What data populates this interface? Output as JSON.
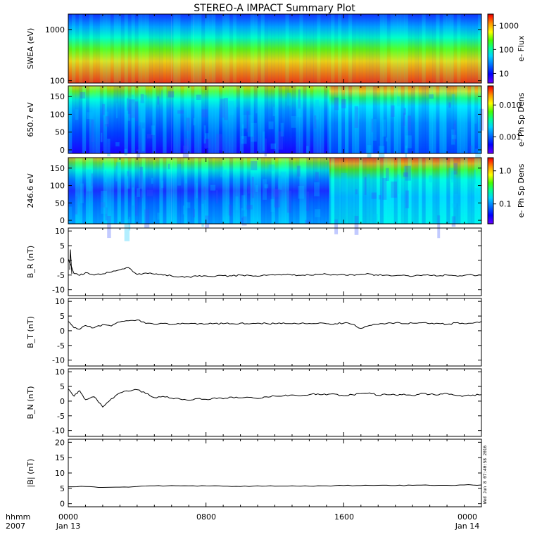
{
  "title": "STEREO-A IMPACT Summary Plot",
  "stamp": "Wed Jun  8 07:40:58 2016",
  "time_axis": {
    "hhmm_label": "hhmm",
    "year_label": "2007",
    "ticks": [
      {
        "time": "0000",
        "date": "Jan 13"
      },
      {
        "time": "0800",
        "date": ""
      },
      {
        "time": "1600",
        "date": ""
      },
      {
        "time": "0000",
        "date": "Jan 14"
      }
    ]
  },
  "colors": {
    "background": "#ffffff",
    "axis": "#000000",
    "trace": "#000000",
    "colormap": [
      "#6a00ff",
      "#0000ff",
      "#0077ff",
      "#00d4ff",
      "#00ff9a",
      "#46ff00",
      "#ffff00",
      "#ff9800",
      "#ff2000",
      "#d40000"
    ]
  },
  "chart_data": [
    {
      "type": "heatmap",
      "name": "swea_spectrogram",
      "ylabel": "SWEA (eV)",
      "y_scale": "log",
      "ylim": [
        90,
        2000
      ],
      "yticks": [
        {
          "value": 100,
          "label": "100"
        },
        {
          "value": 1000,
          "label": "1000"
        }
      ],
      "colorbar": {
        "label": "e- Flux",
        "scale": "log",
        "range": [
          4,
          3000
        ],
        "ticks": [
          {
            "value": 10,
            "label": "10"
          },
          {
            "value": 100,
            "label": "100"
          },
          {
            "value": 1000,
            "label": "1000"
          }
        ]
      },
      "regions": [
        {
          "start": "0000",
          "end": "0600",
          "low_energy_level": 0.77
        },
        {
          "start": "0600",
          "end": "0715",
          "low_energy_level": 0.86
        },
        {
          "start": "0715",
          "end": "1510",
          "low_energy_level": 0.72
        },
        {
          "start": "1510",
          "end": "2400",
          "low_energy_level": 0.94
        }
      ]
    },
    {
      "type": "heatmap",
      "name": "pad_650",
      "ylabel": "650.7 eV",
      "ylim": [
        -10,
        180
      ],
      "yticks": [
        {
          "value": 0,
          "label": "0"
        },
        {
          "value": 50,
          "label": "50"
        },
        {
          "value": 100,
          "label": "100"
        },
        {
          "value": 150,
          "label": "150"
        }
      ],
      "colorbar": {
        "label": "e- Ph Sp Dens",
        "scale": "log",
        "range": [
          0.0003,
          0.04
        ],
        "ticks": [
          {
            "value": 0.001,
            "label": "0.001"
          },
          {
            "value": 0.01,
            "label": "0.010"
          }
        ]
      },
      "regions": [
        {
          "start": "0000",
          "end": "0600",
          "level": 0.31
        },
        {
          "start": "0600",
          "end": "1510",
          "level": 0.22
        },
        {
          "start": "1510",
          "end": "2400",
          "level": 0.45
        }
      ]
    },
    {
      "type": "heatmap",
      "name": "pad_246",
      "ylabel": "246.6 eV",
      "ylim": [
        -10,
        180
      ],
      "yticks": [
        {
          "value": 0,
          "label": "0"
        },
        {
          "value": 50,
          "label": "50"
        },
        {
          "value": 100,
          "label": "100"
        },
        {
          "value": 150,
          "label": "150"
        }
      ],
      "colorbar": {
        "label": "e- Ph Sp Dens",
        "scale": "log",
        "range": [
          0.025,
          2.5
        ],
        "ticks": [
          {
            "value": 0.1,
            "label": "0.1"
          },
          {
            "value": 1,
            "label": "1.0"
          }
        ]
      },
      "regions": [
        {
          "start": "0000",
          "end": "0600",
          "level": 0.3
        },
        {
          "start": "0600",
          "end": "1510",
          "level": 0.16
        },
        {
          "start": "1510",
          "end": "2400",
          "level": 0.42
        }
      ]
    },
    {
      "type": "line",
      "name": "br",
      "ylabel": "B_R (nT)",
      "ylim": [
        -12,
        11
      ],
      "yticks": [
        {
          "value": -10,
          "label": "-10"
        },
        {
          "value": -5,
          "label": "-5"
        },
        {
          "value": 0,
          "label": "0"
        },
        {
          "value": 5,
          "label": "5"
        },
        {
          "value": 10,
          "label": "10"
        }
      ],
      "x": [
        "0000",
        "0020",
        "0040",
        "0100",
        "0130",
        "0200",
        "0230",
        "0300",
        "0330",
        "0400",
        "0430",
        "0500",
        "0530",
        "0600",
        "0630",
        "0700",
        "0730",
        "0800",
        "0830",
        "0900",
        "0930",
        "1000",
        "1030",
        "1100",
        "1130",
        "1200",
        "1230",
        "1300",
        "1330",
        "1400",
        "1430",
        "1500",
        "1530",
        "1600",
        "1630",
        "1700",
        "1730",
        "1800",
        "1830",
        "1900",
        "1930",
        "2000",
        "2030",
        "2100",
        "2130",
        "2200",
        "2230",
        "2300",
        "2330",
        "2400"
      ],
      "y": [
        0.5,
        -4.5,
        -5.1,
        -4.2,
        -5.0,
        -4.6,
        -4.0,
        -3.2,
        -2.5,
        -4.8,
        -4.3,
        -4.7,
        -5.0,
        -5.3,
        -5.6,
        -5.6,
        -5.4,
        -5.3,
        -5.5,
        -5.2,
        -5.3,
        -5.0,
        -5.1,
        -5.4,
        -5.1,
        -5.0,
        -4.8,
        -5.0,
        -5.1,
        -5.0,
        -4.8,
        -4.7,
        -4.9,
        -4.8,
        -4.9,
        -4.7,
        -4.6,
        -5.1,
        -5.0,
        -5.2,
        -5.0,
        -5.4,
        -5.2,
        -5.1,
        -5.3,
        -5.0,
        -5.2,
        -5.1,
        -5.0,
        -5.1
      ]
    },
    {
      "type": "line",
      "name": "bt",
      "ylabel": "B_T (nT)",
      "ylim": [
        -12,
        11
      ],
      "yticks": [
        {
          "value": -10,
          "label": "-10"
        },
        {
          "value": -5,
          "label": "-5"
        },
        {
          "value": 0,
          "label": "0"
        },
        {
          "value": 5,
          "label": "5"
        },
        {
          "value": 10,
          "label": "10"
        }
      ],
      "x": [
        "0000",
        "0020",
        "0040",
        "0100",
        "0130",
        "0200",
        "0230",
        "0300",
        "0330",
        "0400",
        "0430",
        "0500",
        "0530",
        "0600",
        "0630",
        "0700",
        "0730",
        "0800",
        "0830",
        "0900",
        "0930",
        "1000",
        "1030",
        "1100",
        "1130",
        "1200",
        "1230",
        "1300",
        "1330",
        "1400",
        "1430",
        "1500",
        "1530",
        "1600",
        "1630",
        "1700",
        "1730",
        "1800",
        "1830",
        "1900",
        "1930",
        "2000",
        "2030",
        "2100",
        "2130",
        "2200",
        "2230",
        "2300",
        "2330",
        "2400"
      ],
      "y": [
        3.2,
        1.0,
        0.5,
        1.8,
        1.0,
        2.1,
        1.6,
        3.0,
        3.4,
        3.7,
        2.5,
        2.2,
        2.5,
        2.1,
        2.3,
        2.4,
        2.2,
        2.3,
        2.5,
        2.4,
        2.4,
        2.6,
        2.3,
        2.6,
        2.5,
        2.4,
        2.7,
        2.4,
        2.5,
        2.5,
        2.5,
        2.4,
        2.4,
        2.6,
        2.2,
        0.8,
        1.8,
        2.2,
        2.5,
        2.7,
        2.4,
        2.6,
        2.7,
        2.4,
        2.5,
        2.2,
        2.7,
        2.4,
        2.6,
        3.2
      ]
    },
    {
      "type": "line",
      "name": "bn",
      "ylabel": "B_N (nT)",
      "ylim": [
        -12,
        11
      ],
      "yticks": [
        {
          "value": -10,
          "label": "-10"
        },
        {
          "value": -5,
          "label": "-5"
        },
        {
          "value": 0,
          "label": "0"
        },
        {
          "value": 5,
          "label": "5"
        },
        {
          "value": 10,
          "label": "10"
        }
      ],
      "x": [
        "0000",
        "0020",
        "0040",
        "0100",
        "0130",
        "0200",
        "0230",
        "0300",
        "0330",
        "0400",
        "0430",
        "0500",
        "0530",
        "0600",
        "0630",
        "0700",
        "0730",
        "0800",
        "0830",
        "0900",
        "0930",
        "1000",
        "1030",
        "1100",
        "1130",
        "1200",
        "1230",
        "1300",
        "1330",
        "1400",
        "1430",
        "1500",
        "1530",
        "1600",
        "1630",
        "1700",
        "1730",
        "1800",
        "1830",
        "1900",
        "1930",
        "2000",
        "2030",
        "2100",
        "2130",
        "2200",
        "2230",
        "2300",
        "2330",
        "2400"
      ],
      "y": [
        4.2,
        1.7,
        3.5,
        0.5,
        1.5,
        -2.0,
        0.8,
        2.8,
        3.4,
        3.9,
        2.6,
        1.2,
        1.6,
        1.0,
        0.7,
        0.3,
        0.9,
        0.6,
        1.1,
        0.8,
        1.4,
        1.1,
        1.3,
        0.9,
        1.5,
        1.7,
        1.8,
        2.1,
        1.8,
        2.2,
        2.5,
        2.1,
        2.4,
        1.8,
        2.2,
        2.6,
        2.8,
        2.0,
        2.2,
        2.1,
        2.4,
        1.9,
        2.7,
        2.3,
        2.1,
        2.6,
        2.0,
        1.8,
        2.1,
        2.2
      ]
    },
    {
      "type": "line",
      "name": "bmag",
      "ylabel": "|B| (nT)",
      "ylim": [
        -1,
        21
      ],
      "yticks": [
        {
          "value": 0,
          "label": "0"
        },
        {
          "value": 5,
          "label": "5"
        },
        {
          "value": 10,
          "label": "10"
        },
        {
          "value": 15,
          "label": "15"
        },
        {
          "value": 20,
          "label": "20"
        }
      ],
      "x": [
        "0000",
        "0100",
        "0200",
        "0300",
        "0400",
        "0500",
        "0600",
        "0700",
        "0800",
        "0900",
        "1000",
        "1100",
        "1200",
        "1300",
        "1400",
        "1500",
        "1600",
        "1700",
        "1800",
        "1900",
        "2000",
        "2100",
        "2200",
        "2300",
        "2400"
      ],
      "y": [
        5.5,
        5.6,
        5.3,
        5.4,
        5.6,
        5.8,
        5.9,
        5.8,
        5.8,
        5.7,
        5.6,
        5.8,
        5.7,
        5.8,
        5.7,
        5.8,
        5.9,
        5.9,
        6.0,
        5.9,
        6.0,
        6.0,
        6.0,
        6.1,
        6.1
      ]
    }
  ]
}
